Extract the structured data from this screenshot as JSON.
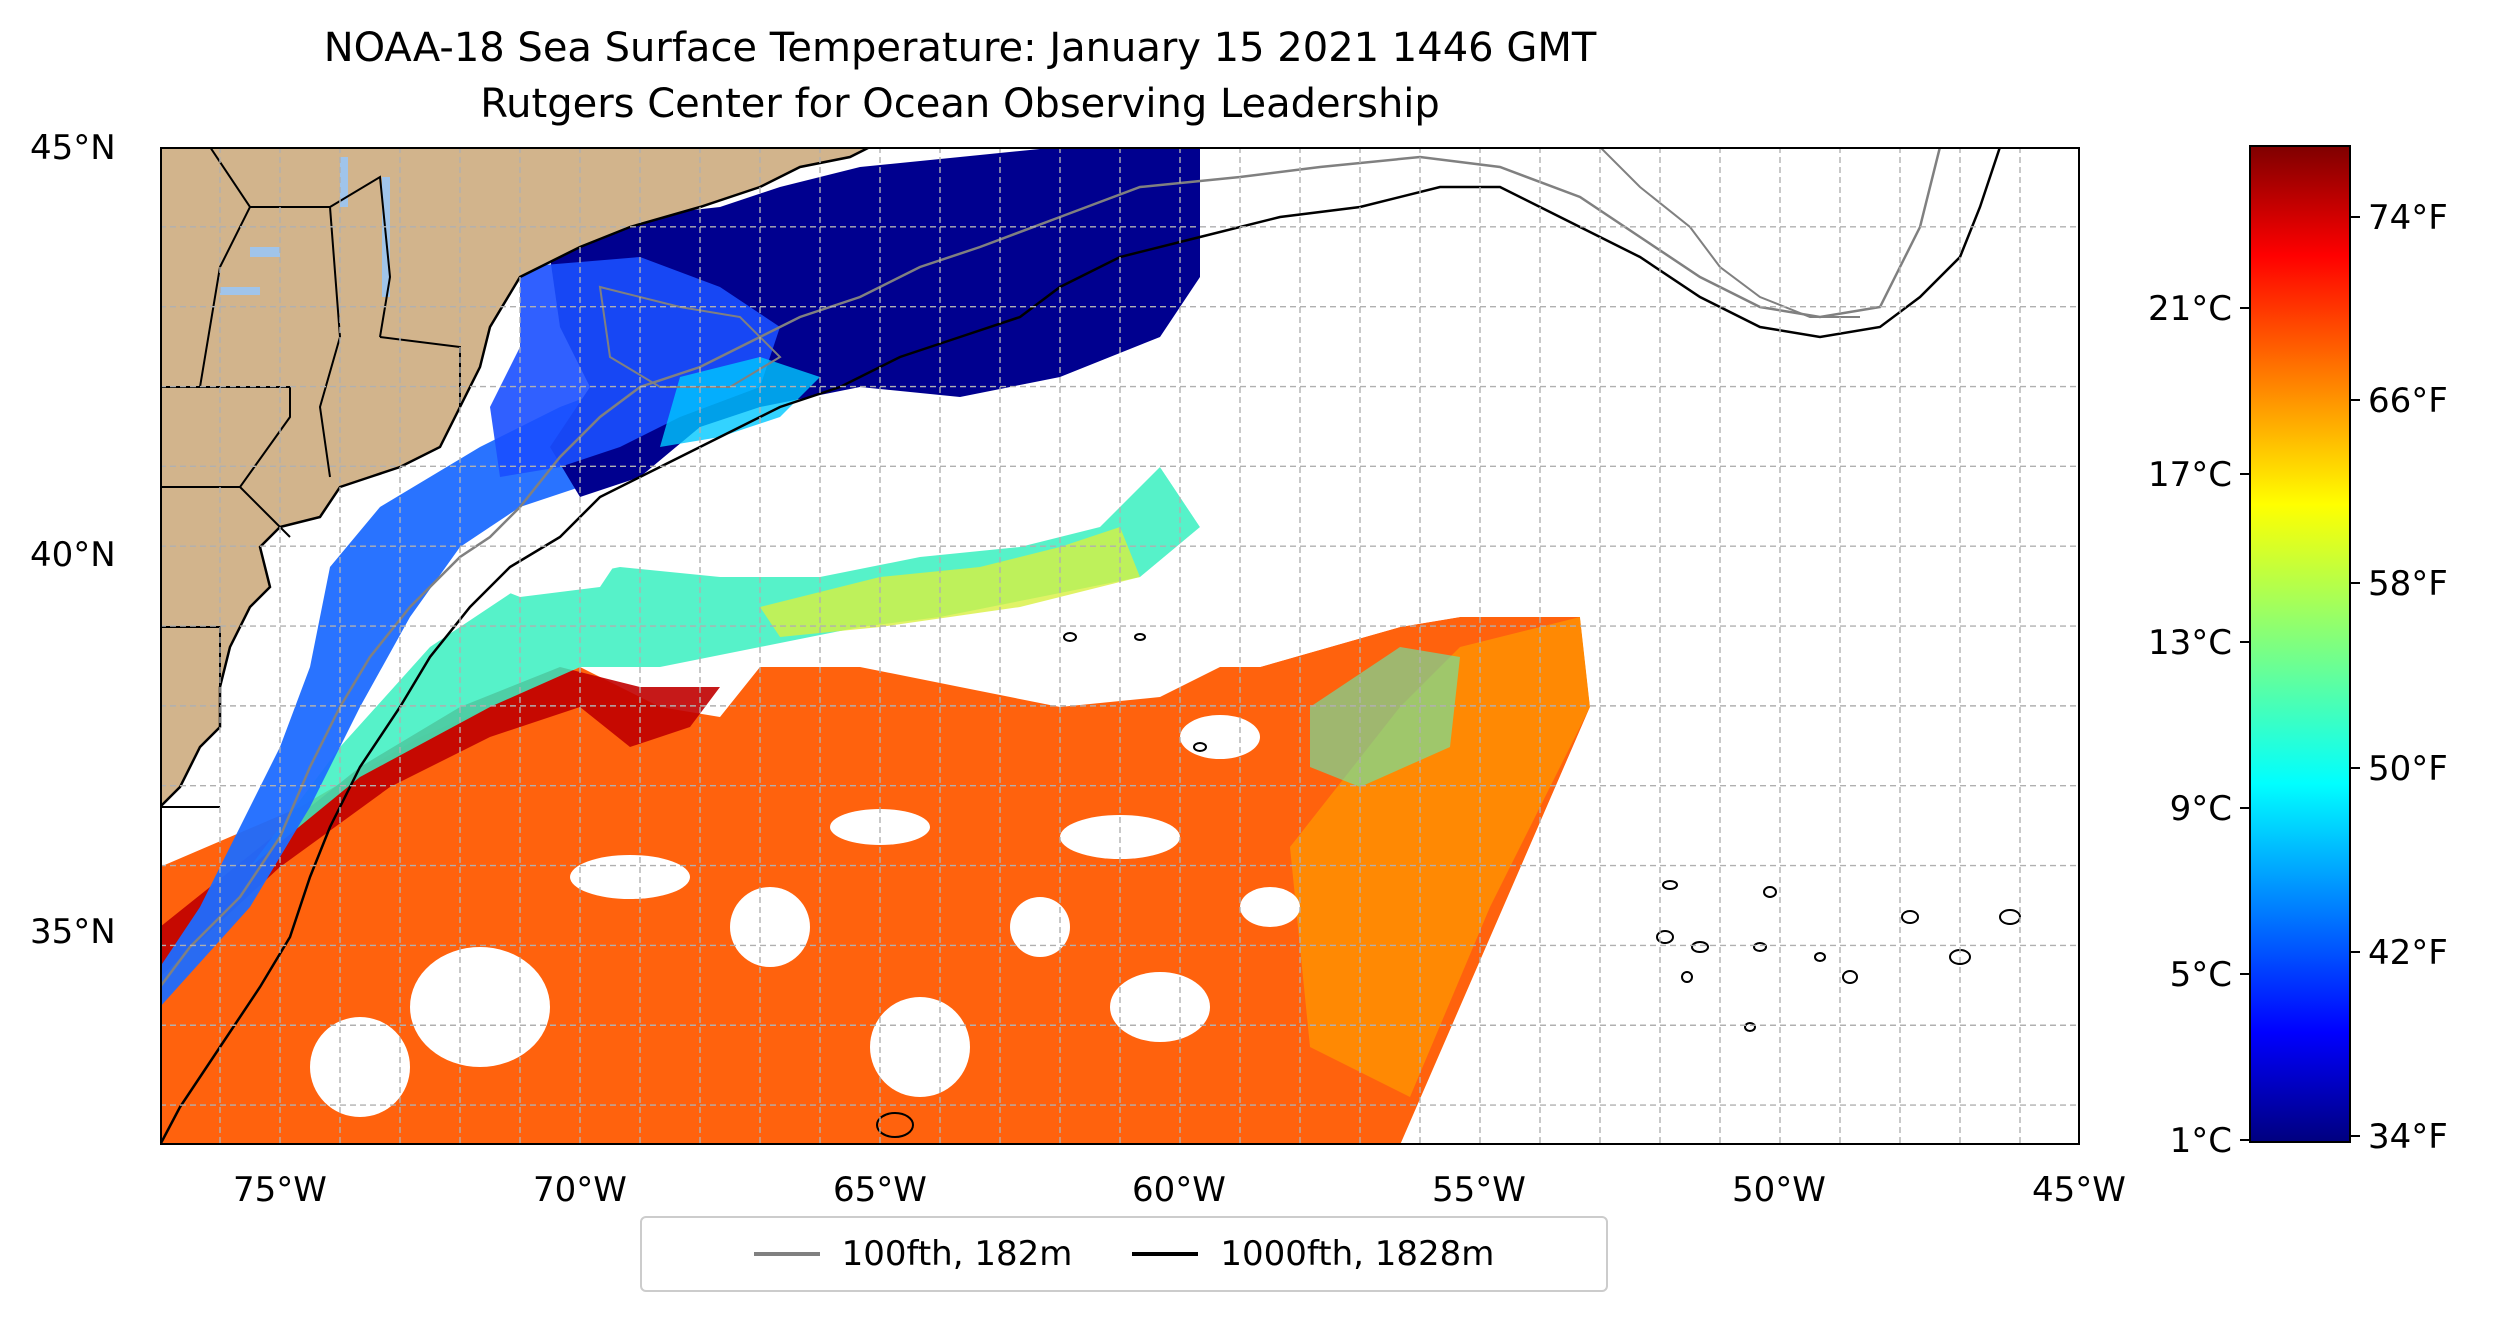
{
  "title_line1": "NOAA-18 Sea Surface Temperature: January 15 2021 1446 GMT",
  "title_line2": "Rutgers Center for Ocean Observing Leadership",
  "axes": {
    "lat_ticks": [
      "45°N",
      "40°N",
      "35°N"
    ],
    "lon_ticks": [
      "75°W",
      "70°W",
      "65°W",
      "60°W",
      "55°W",
      "50°W",
      "45°W"
    ]
  },
  "colorbar": {
    "celsius_ticks": [
      "21°C",
      "17°C",
      "13°C",
      "9°C",
      "5°C",
      "1°C"
    ],
    "fahrenheit_ticks": [
      "74°F",
      "66°F",
      "58°F",
      "50°F",
      "42°F",
      "34°F"
    ],
    "colormap": "jet"
  },
  "legend": {
    "items": [
      {
        "label": "100fth, 182m",
        "color": "#808080"
      },
      {
        "label": "1000fth, 1828m",
        "color": "#000000"
      }
    ]
  },
  "colors": {
    "land": "#d2b48c",
    "no_data": "#ffffff",
    "gridline": "#b0b0b0"
  }
}
